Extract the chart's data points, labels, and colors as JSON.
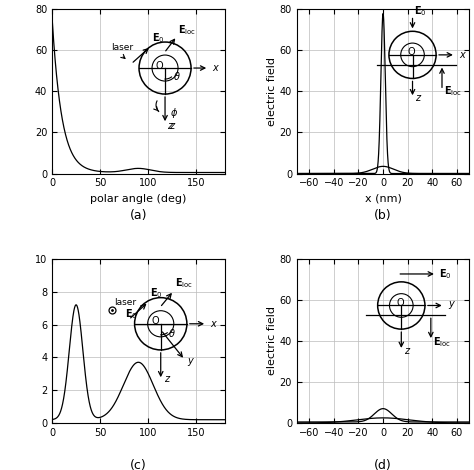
{
  "panels": [
    "a",
    "b",
    "c",
    "d"
  ],
  "panel_a": {
    "xlabel": "polar angle (deg)",
    "ylabel": "",
    "xlim": [
      0,
      180
    ],
    "ylim": [
      0,
      80
    ],
    "yticks": [
      0,
      20,
      40,
      60,
      80
    ],
    "xticks": [
      0,
      50,
      100,
      150
    ]
  },
  "panel_b": {
    "xlabel": "x (nm)",
    "ylabel": "electric field",
    "xlim": [
      -70,
      70
    ],
    "ylim": [
      0,
      80
    ],
    "yticks": [
      0,
      20,
      40,
      60,
      80
    ],
    "xticks": [
      -60,
      -40,
      -20,
      0,
      20,
      40,
      60
    ]
  },
  "panel_c": {
    "xlabel": "",
    "ylabel": "",
    "xlim": [
      0,
      180
    ],
    "ylim": [
      0,
      10
    ],
    "yticks": [
      0,
      2,
      4,
      6,
      8,
      10
    ],
    "xticks": [
      0,
      50,
      100,
      150
    ]
  },
  "panel_d": {
    "xlabel": "",
    "ylabel": "electric field",
    "xlim": [
      -70,
      70
    ],
    "ylim": [
      0,
      80
    ],
    "yticks": [
      0,
      20,
      40,
      60,
      80
    ],
    "xticks": [
      -60,
      -40,
      -20,
      0,
      20,
      40,
      60
    ]
  },
  "line_color": "#000000",
  "bg_color": "#ffffff",
  "grid_color": "#bbbbbb",
  "label_fontsize": 8,
  "tick_fontsize": 7,
  "panel_label_fontsize": 9
}
